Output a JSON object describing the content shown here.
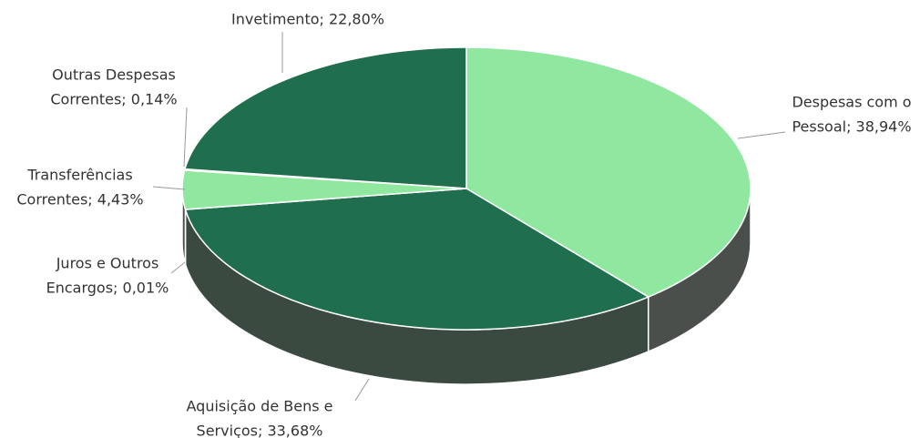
{
  "chart_data": {
    "type": "pie",
    "subtype": "3d",
    "value_labels": [
      [
        "Despesas com o",
        "Pessoal; 38,94%"
      ],
      [
        "Aquisição de Bens e",
        "Serviços; 33,68%"
      ],
      [
        "Juros e Outros",
        "Encargos; 0,01%"
      ],
      [
        "Transferências",
        "Correntes; 4,43%"
      ],
      [
        "Outras Despesas",
        "Correntes; 0,14%"
      ],
      [
        "Invetimento; 22,80%"
      ]
    ],
    "values": [
      38.94,
      33.68,
      0.01,
      4.43,
      0.14,
      22.8
    ],
    "colors": [
      "#90e8a0",
      "#1f6e4e",
      "#1f6e4e",
      "#90e8a0",
      "#1f6e4e",
      "#1f6e4e"
    ],
    "side_colors": [
      "#4a4f4c",
      "#3a4a40",
      "#3a4a40",
      "#4a4f4c",
      "#3a4a40",
      "#3a4a40"
    ]
  }
}
